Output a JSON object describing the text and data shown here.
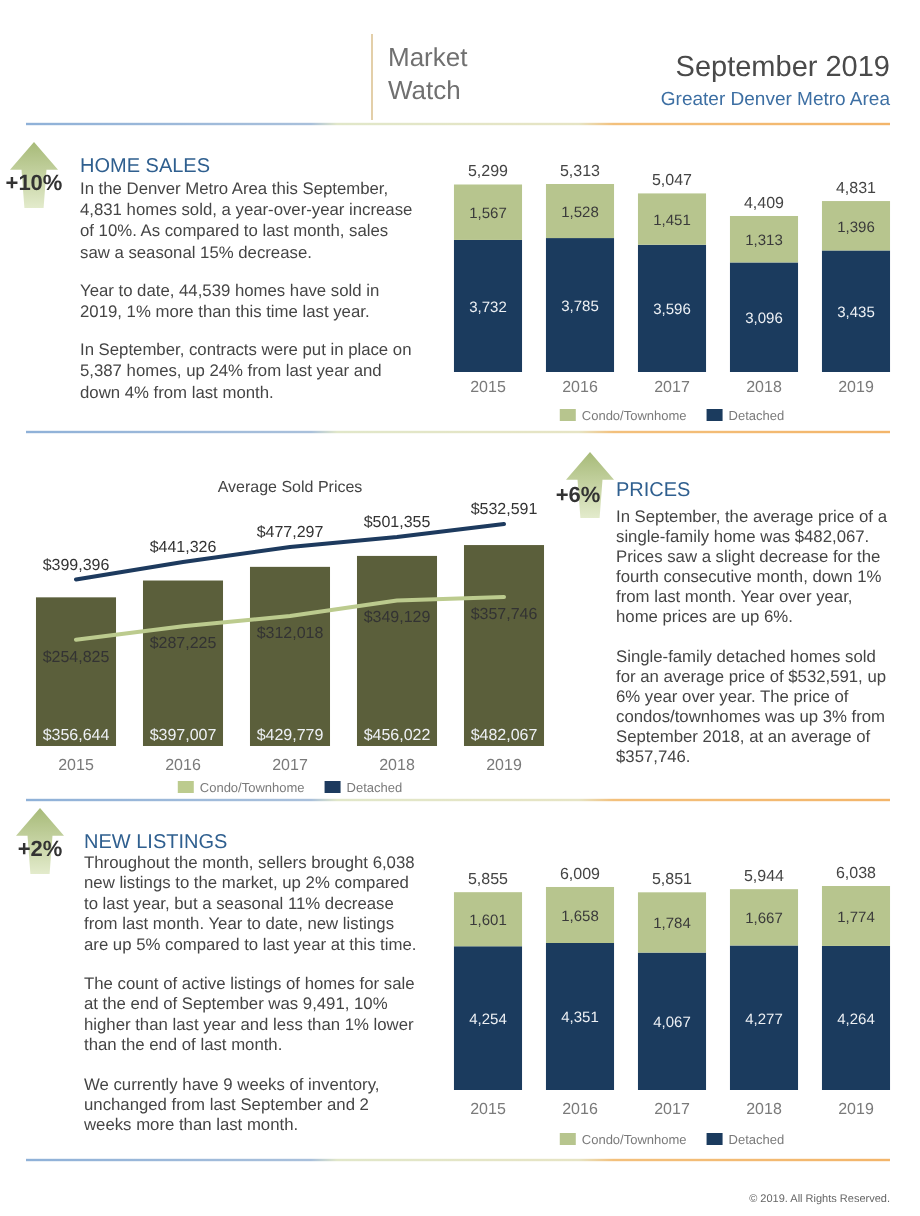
{
  "chart_data": [
    {
      "type": "other",
      "title": "September 2019",
      "subtitle": "Greater Denver Metro Area",
      "annotations": [
        "Market Watch"
      ]
    },
    {
      "type": "other",
      "title": "HOME SALES",
      "annotations": [
        "+10%",
        "In the Denver Metro Area this September, 4,831 homes sold, a year-over-year increase of 10%. As compared to last month, sales saw a seasonal 15% decrease.",
        "Year to date, 44,539 homes have sold in 2019, 1% more than this time last year.",
        "In September, contracts were put in place on 5,387 homes, up 24% from last year and down 4% from last month."
      ]
    },
    {
      "type": "bar",
      "stacked": true,
      "categories": [
        "2015",
        "2016",
        "2017",
        "2018",
        "2019"
      ],
      "series": [
        {
          "name": "Detached",
          "color": "#1b3b5e",
          "values": [
            3732,
            3785,
            3596,
            3096,
            3435
          ],
          "value_labels": [
            "3,732",
            "3,785",
            "3,596",
            "3,096",
            "3,435"
          ]
        },
        {
          "name": "Condo/Townhome",
          "color": "#b7c58e",
          "values": [
            1567,
            1528,
            1451,
            1313,
            1396
          ],
          "value_labels": [
            "1,567",
            "1,528",
            "1,451",
            "1,313",
            "1,396"
          ]
        }
      ],
      "totals": [
        "5,299",
        "5,313",
        "5,047",
        "4,409",
        "4,831"
      ],
      "legend": "bottom"
    },
    {
      "type": "bar",
      "title": "Average Sold Prices",
      "categories": [
        "2015",
        "2016",
        "2017",
        "2018",
        "2019"
      ],
      "series": [
        {
          "color": "#5b5f3b",
          "values": [
            356644,
            397007,
            429779,
            456022,
            482067
          ],
          "value_labels": [
            "$356,644",
            "$397,007",
            "$429,779",
            "$456,022",
            "$482,067"
          ]
        },
        {
          "type": "line",
          "name": "Condo/Townhome",
          "color": "#bccb8e",
          "values": [
            254825,
            287225,
            312018,
            349129,
            357746
          ],
          "value_labels": [
            "$254,825",
            "$287,225",
            "$312,018",
            "$349,129",
            "$357,746"
          ]
        },
        {
          "type": "line",
          "name": "Detached",
          "color": "#1d3a5e",
          "values": [
            399396,
            441326,
            477297,
            501355,
            532591
          ],
          "value_labels": [
            "$399,396",
            "$441,326",
            "$477,297",
            "$501,355",
            "$532,591"
          ]
        }
      ],
      "legend": "bottom"
    },
    {
      "type": "other",
      "title": "PRICES",
      "annotations": [
        "+6%",
        "In September, the average price of a single-family home was $482,067. Prices saw a slight decrease for the fourth consecutive month, down 1% from last month. Year over year, home prices are up 6%.",
        "Single-family detached homes sold for an average price of $532,591, up 6% year over year. The price of condos/townhomes was up 3% from September 2018, at an average of $357,746."
      ]
    },
    {
      "type": "other",
      "title": "NEW LISTINGS",
      "annotations": [
        "+2%",
        "Throughout the month, sellers brought 6,038 new listings to the market, up 2% compared to last year, but a seasonal 11% decrease from last month. Year to date, new listings are up 5% compared to last year at this time.",
        "The count of active listings of homes for sale at the end of September was 9,491, 10% higher than last year and less than 1% lower than the end of last month.",
        "We currently have 9 weeks of inventory, unchanged from last September and 2 weeks more than last month."
      ]
    },
    {
      "type": "bar",
      "stacked": true,
      "categories": [
        "2015",
        "2016",
        "2017",
        "2018",
        "2019"
      ],
      "series": [
        {
          "name": "Detached",
          "color": "#1b3b5e",
          "values": [
            4254,
            4351,
            4067,
            4277,
            4264
          ],
          "value_labels": [
            "4,254",
            "4,351",
            "4,067",
            "4,277",
            "4,264"
          ]
        },
        {
          "name": "Condo/Townhome",
          "color": "#b7c58e",
          "values": [
            1601,
            1658,
            1784,
            1667,
            1774
          ],
          "value_labels": [
            "1,601",
            "1,658",
            "1,784",
            "1,667",
            "1,774"
          ]
        }
      ],
      "totals": [
        "5,855",
        "6,009",
        "5,851",
        "5,944",
        "6,038"
      ],
      "legend": "bottom"
    },
    {
      "type": "other",
      "annotations": [
        "© 2019. All Rights Reserved."
      ]
    }
  ]
}
